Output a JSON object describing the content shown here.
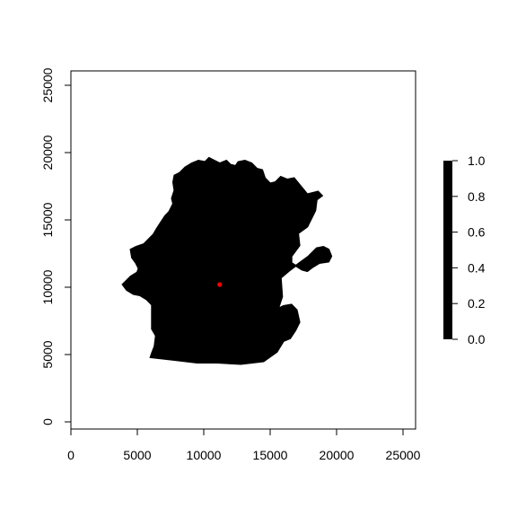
{
  "chart_data": {
    "type": "heatmap",
    "title": "",
    "xlabel": "",
    "ylabel": "",
    "xlim": [
      0,
      25500
    ],
    "ylim": [
      0,
      25500
    ],
    "x_ticks": [
      0,
      5000,
      10000,
      15000,
      20000,
      25000
    ],
    "x_tick_labels": [
      "0",
      "5000",
      "10000",
      "15000",
      "20000",
      "25000"
    ],
    "y_ticks": [
      0,
      5000,
      10000,
      15000,
      20000,
      25000
    ],
    "y_tick_labels": [
      "0",
      "5000",
      "10000",
      "15000",
      "20000",
      "25000"
    ],
    "grid": false,
    "raster": {
      "value": 1.0,
      "color": "#000000",
      "outline": [
        [
          6000,
          4800
        ],
        [
          7800,
          4600
        ],
        [
          9500,
          4400
        ],
        [
          11000,
          4400
        ],
        [
          12800,
          4300
        ],
        [
          14500,
          4500
        ],
        [
          15500,
          5200
        ],
        [
          16000,
          6000
        ],
        [
          16500,
          6200
        ],
        [
          16900,
          6800
        ],
        [
          17200,
          7400
        ],
        [
          17000,
          8300
        ],
        [
          16600,
          8700
        ],
        [
          16000,
          8600
        ],
        [
          15600,
          8400
        ],
        [
          15900,
          9300
        ],
        [
          15800,
          10700
        ],
        [
          16400,
          11200
        ],
        [
          17200,
          11800
        ],
        [
          17900,
          12300
        ],
        [
          18500,
          12900
        ],
        [
          19000,
          13000
        ],
        [
          19400,
          12800
        ],
        [
          19600,
          12300
        ],
        [
          19400,
          11900
        ],
        [
          18700,
          11800
        ],
        [
          18200,
          11500
        ],
        [
          17800,
          11200
        ],
        [
          17400,
          11300
        ],
        [
          16600,
          11800
        ],
        [
          16600,
          12300
        ],
        [
          17200,
          13100
        ],
        [
          17100,
          14000
        ],
        [
          17800,
          14500
        ],
        [
          18400,
          15700
        ],
        [
          18500,
          16500
        ],
        [
          18900,
          16800
        ],
        [
          18600,
          17100
        ],
        [
          17800,
          16900
        ],
        [
          17300,
          17500
        ],
        [
          16800,
          18100
        ],
        [
          16300,
          18000
        ],
        [
          15800,
          18200
        ],
        [
          15400,
          17800
        ],
        [
          15000,
          17700
        ],
        [
          14600,
          18100
        ],
        [
          14400,
          18700
        ],
        [
          14000,
          18800
        ],
        [
          13600,
          19200
        ],
        [
          13100,
          19400
        ],
        [
          12600,
          19300
        ],
        [
          12400,
          19000
        ],
        [
          12000,
          19100
        ],
        [
          11700,
          19400
        ],
        [
          11200,
          19200
        ],
        [
          10800,
          19400
        ],
        [
          10400,
          19600
        ],
        [
          10100,
          19300
        ],
        [
          9600,
          19400
        ],
        [
          9100,
          19200
        ],
        [
          8600,
          18900
        ],
        [
          8200,
          18500
        ],
        [
          7800,
          18300
        ],
        [
          7700,
          17800
        ],
        [
          7800,
          17200
        ],
        [
          7600,
          16600
        ],
        [
          7700,
          16200
        ],
        [
          7400,
          15600
        ],
        [
          7100,
          15300
        ],
        [
          6900,
          15000
        ],
        [
          6500,
          14400
        ],
        [
          6200,
          13900
        ],
        [
          5900,
          13600
        ],
        [
          5500,
          13200
        ],
        [
          4900,
          13000
        ],
        [
          4500,
          12800
        ],
        [
          4600,
          12200
        ],
        [
          4900,
          11800
        ],
        [
          5100,
          11400
        ],
        [
          5000,
          11100
        ],
        [
          4500,
          10800
        ],
        [
          4200,
          10500
        ],
        [
          3900,
          10200
        ],
        [
          4200,
          9800
        ],
        [
          4700,
          9500
        ],
        [
          5200,
          9400
        ],
        [
          5700,
          9100
        ],
        [
          6100,
          8700
        ],
        [
          6100,
          7800
        ],
        [
          6100,
          6900
        ],
        [
          6400,
          6400
        ],
        [
          6300,
          5600
        ],
        [
          6100,
          5100
        ]
      ]
    },
    "points": [
      {
        "x": 11200,
        "y": 10200,
        "color": "#ff0000"
      }
    ],
    "legend": {
      "placement": "right",
      "scale": [
        0.0,
        1.0
      ],
      "ticks": [
        1.0,
        0.8,
        0.6,
        0.4,
        0.2,
        0.0
      ],
      "tick_labels": [
        "1.0",
        "0.8",
        "0.6",
        "0.4",
        "0.2",
        "0.0"
      ],
      "bar_color": "#000000"
    }
  }
}
